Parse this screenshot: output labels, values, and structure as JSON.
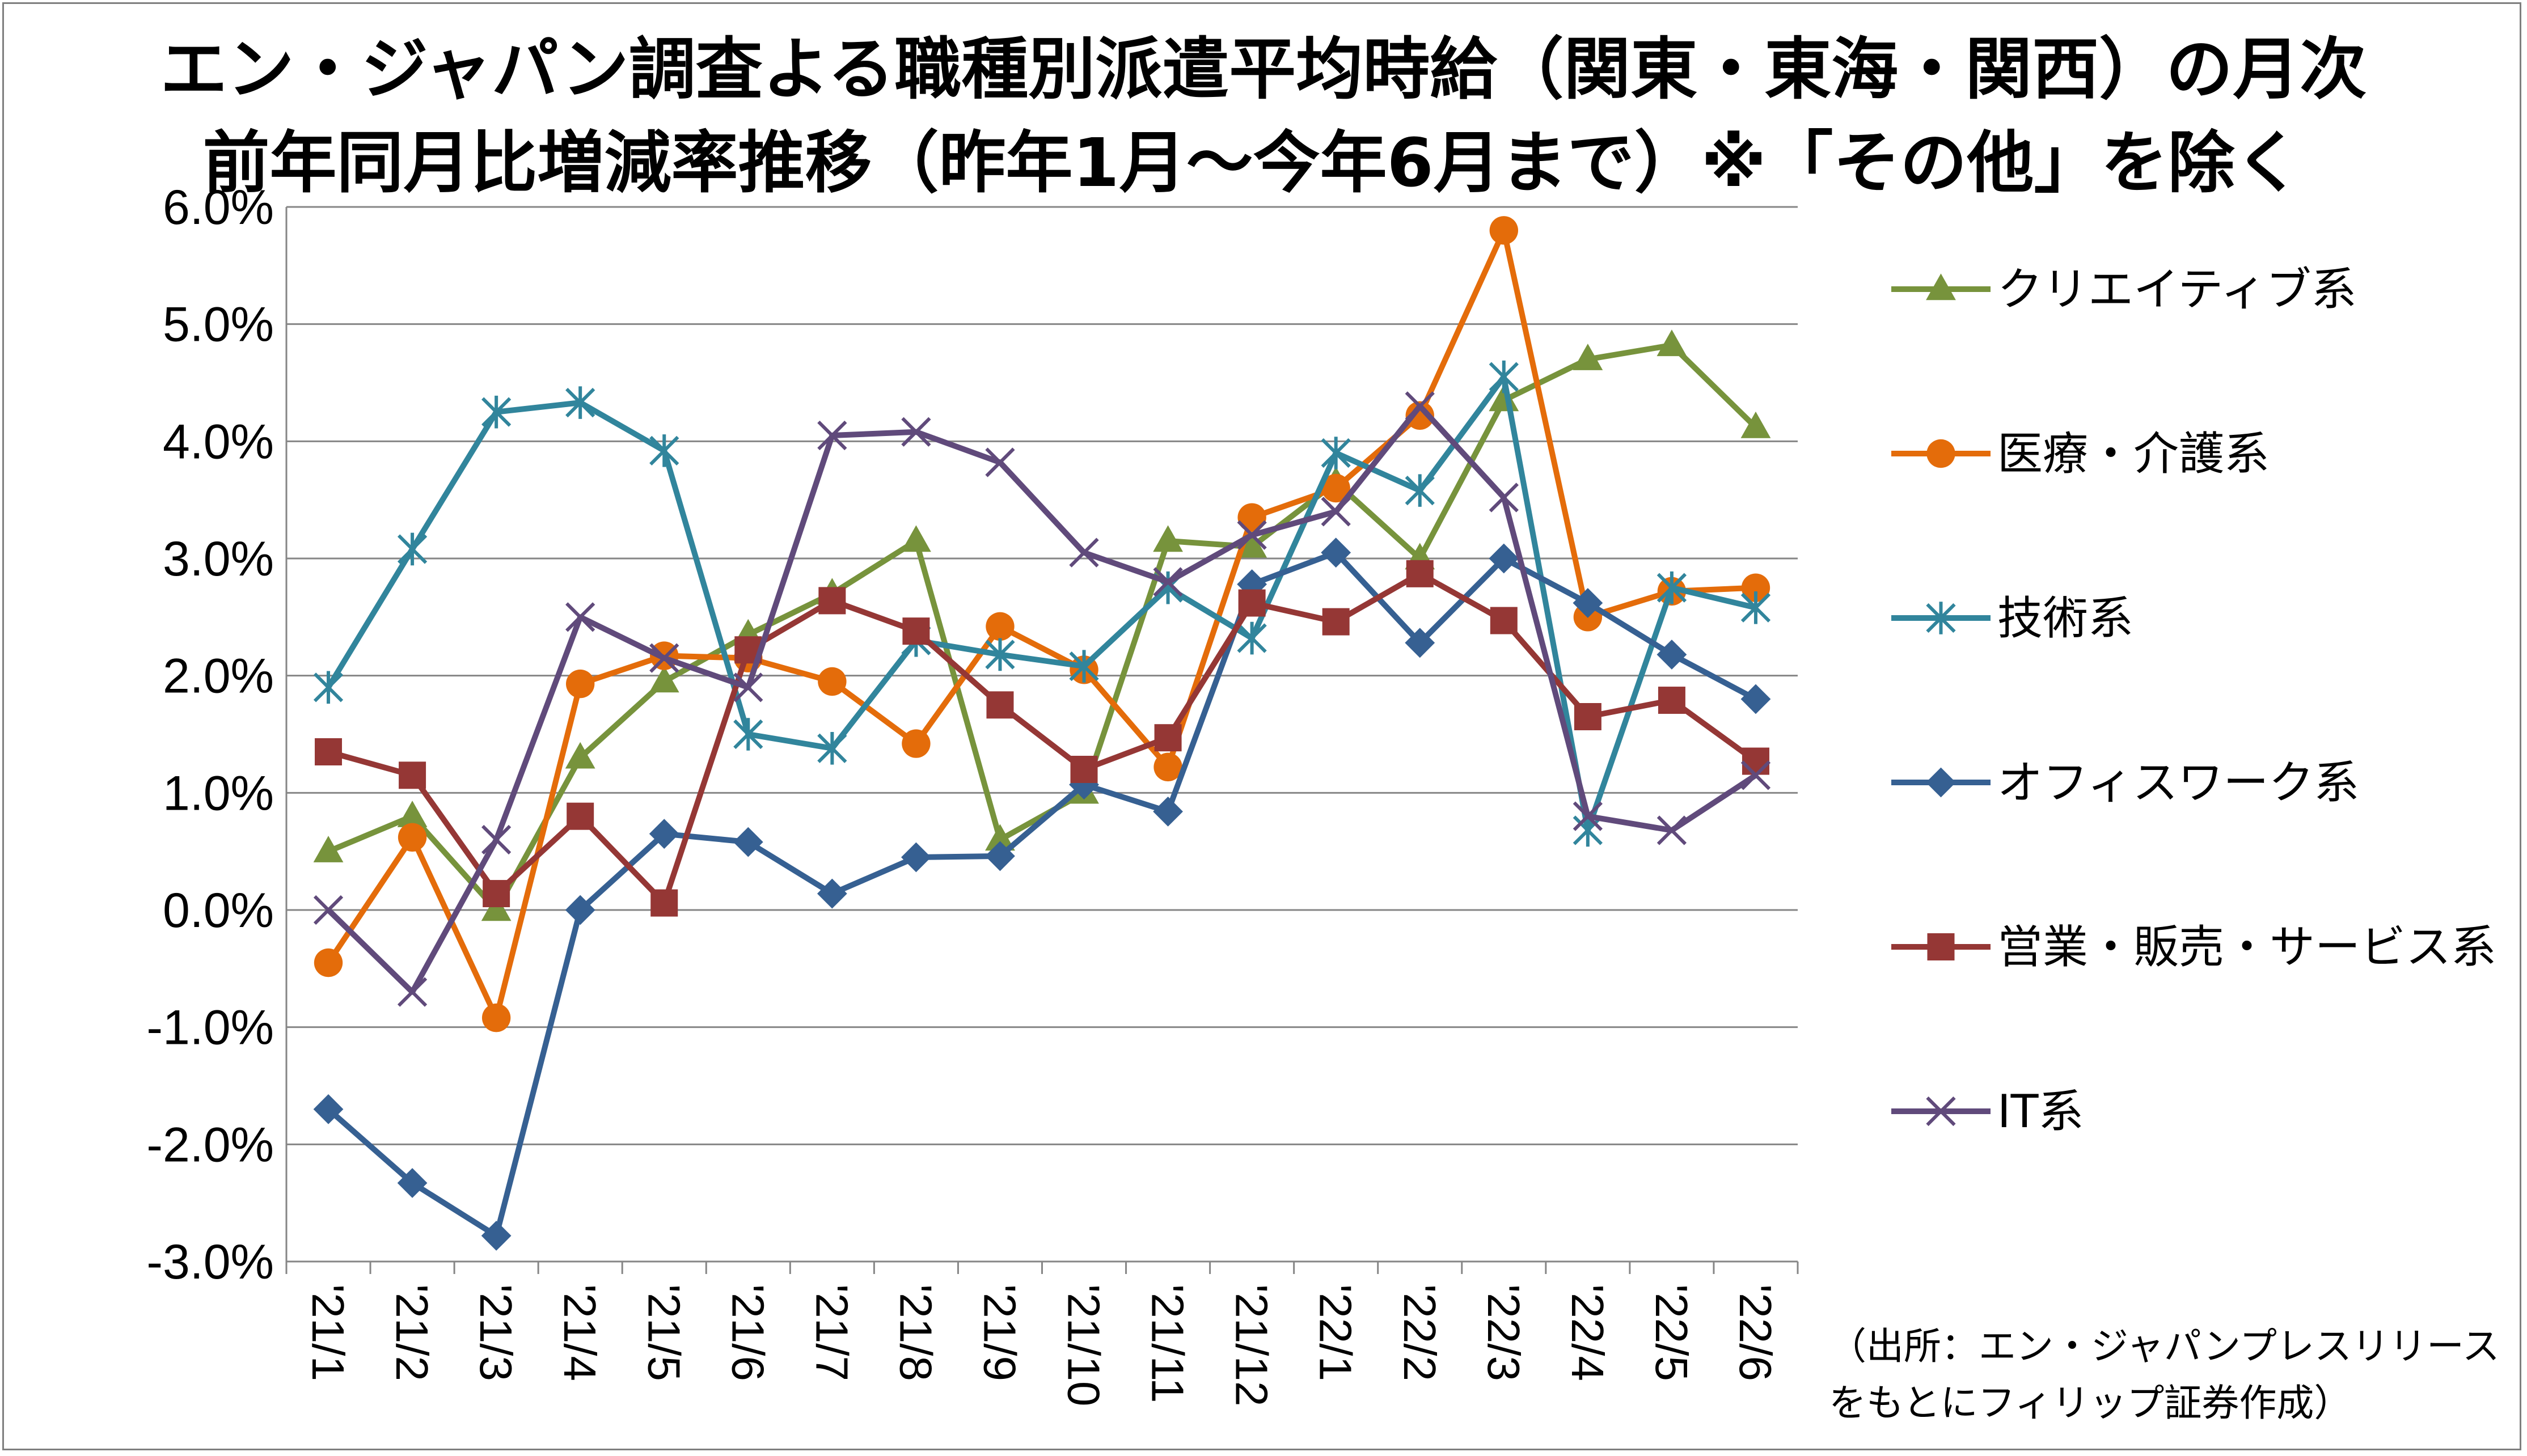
{
  "title_line1": "エン・ジャパン調査よる職種別派遣平均時給（関東・東海・関西）の月次",
  "title_line2": "前年同月比増減率推移（昨年1月～今年6月まで）※「その他」を除く",
  "source_line1": "（出所：エン・ジャパンプレスリリース",
  "source_line2": "をもとにフィリップ証券作成）",
  "chart_data": {
    "type": "line",
    "title": "エン・ジャパン調査よる職種別派遣平均時給（関東・東海・関西）の月次 前年同月比増減率推移（昨年1月～今年6月まで）※「その他」を除く",
    "x": [
      "'21/1",
      "'21/2",
      "'21/3",
      "'21/4",
      "'21/5",
      "'21/6",
      "'21/7",
      "'21/8",
      "'21/9",
      "'21/10",
      "'21/11",
      "'21/12",
      "'22/1",
      "'22/2",
      "'22/3",
      "'22/4",
      "'22/5",
      "'22/6"
    ],
    "ylim": [
      -3.0,
      6.0
    ],
    "yticks": [
      "6.0%",
      "5.0%",
      "4.0%",
      "3.0%",
      "2.0%",
      "1.0%",
      "0.0%",
      "-1.0%",
      "-2.0%",
      "-3.0%"
    ],
    "grid": true,
    "legend_position": "right",
    "series": [
      {
        "name": "クリエイティブ系",
        "color": "#77933c",
        "marker": "triangle",
        "values": [
          0.5,
          0.8,
          0.0,
          1.3,
          1.95,
          2.35,
          2.7,
          3.15,
          0.6,
          1.0,
          3.15,
          3.1,
          3.65,
          3.0,
          4.35,
          4.7,
          4.82,
          4.12
        ]
      },
      {
        "name": "医療・介護系",
        "color": "#e46c0a",
        "marker": "circle",
        "values": [
          -0.45,
          0.62,
          -0.92,
          1.93,
          2.17,
          2.15,
          1.95,
          1.42,
          2.42,
          2.05,
          1.22,
          3.35,
          3.6,
          4.22,
          5.8,
          2.5,
          2.72,
          2.75
        ]
      },
      {
        "name": "技術系",
        "color": "#31859c",
        "marker": "asterisk",
        "values": [
          1.9,
          3.08,
          4.25,
          4.33,
          3.92,
          1.5,
          1.38,
          2.3,
          2.18,
          2.08,
          2.75,
          2.32,
          3.9,
          3.58,
          4.55,
          0.68,
          2.75,
          2.58
        ]
      },
      {
        "name": "オフィスワーク系",
        "color": "#366092",
        "marker": "diamond",
        "values": [
          -1.7,
          -2.33,
          -2.78,
          0.0,
          0.65,
          0.58,
          0.14,
          0.45,
          0.46,
          1.07,
          0.84,
          2.78,
          3.05,
          2.28,
          3.0,
          2.62,
          2.18,
          1.8
        ]
      },
      {
        "name": "営業・販売・サービス系",
        "color": "#953735",
        "marker": "square",
        "values": [
          1.35,
          1.15,
          0.14,
          0.8,
          0.06,
          2.22,
          2.64,
          2.38,
          1.75,
          1.2,
          1.47,
          2.62,
          2.46,
          2.87,
          2.47,
          1.65,
          1.79,
          1.27
        ]
      },
      {
        "name": "IT系",
        "color": "#604a7b",
        "marker": "cross",
        "values": [
          0.0,
          -0.7,
          0.6,
          2.5,
          2.15,
          1.9,
          4.05,
          4.08,
          3.82,
          3.05,
          2.8,
          3.2,
          3.4,
          4.3,
          3.52,
          0.8,
          0.68,
          1.15
        ]
      }
    ]
  }
}
